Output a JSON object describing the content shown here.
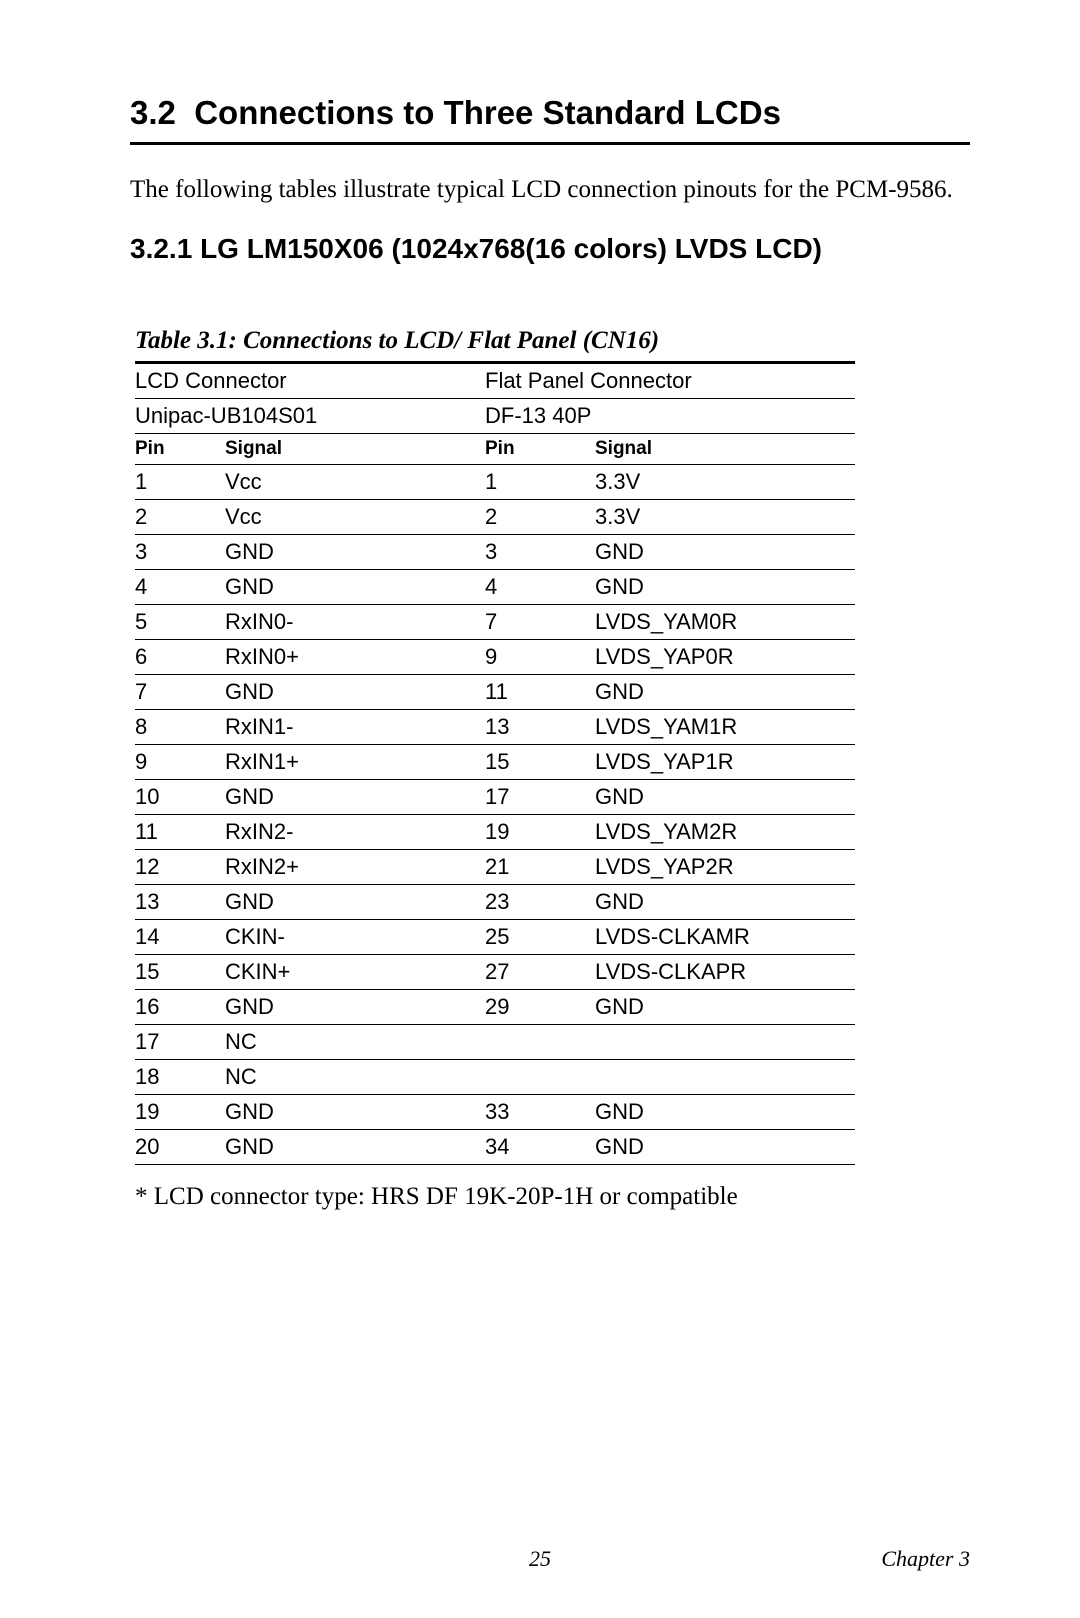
{
  "section": {
    "number": "3.2",
    "title": "Connections to Three Standard LCDs",
    "intro": "The following tables illustrate typical LCD connection pinouts for the PCM-9586."
  },
  "subsection": {
    "number": "3.2.1",
    "title": "LG LM150X06 (1024x768(16 colors) LVDS LCD)"
  },
  "table": {
    "caption": "Table 3.1: Connections to LCD/ Flat Panel  (CN16)",
    "left_group": "LCD Connector",
    "right_group": "Flat Panel Connector",
    "left_sub": "Unipac-UB104S01",
    "right_sub": "DF-13 40P",
    "col_headers": {
      "pin": "Pin",
      "signal": "Signal"
    },
    "rows": [
      {
        "lp": "1",
        "ls": "Vcc",
        "rp": "1",
        "rs": "3.3V"
      },
      {
        "lp": "2",
        "ls": "Vcc",
        "rp": "2",
        "rs": "3.3V"
      },
      {
        "lp": "3",
        "ls": "GND",
        "rp": "3",
        "rs": "GND"
      },
      {
        "lp": "4",
        "ls": "GND",
        "rp": "4",
        "rs": "GND"
      },
      {
        "lp": "5",
        "ls": "RxIN0-",
        "rp": "7",
        "rs": "LVDS_YAM0R"
      },
      {
        "lp": "6",
        "ls": "RxIN0+",
        "rp": "9",
        "rs": "LVDS_YAP0R"
      },
      {
        "lp": "7",
        "ls": "GND",
        "rp": "11",
        "rs": "GND"
      },
      {
        "lp": "8",
        "ls": "RxIN1-",
        "rp": "13",
        "rs": "LVDS_YAM1R"
      },
      {
        "lp": "9",
        "ls": "RxIN1+",
        "rp": "15",
        "rs": "LVDS_YAP1R"
      },
      {
        "lp": "10",
        "ls": "GND",
        "rp": "17",
        "rs": "GND"
      },
      {
        "lp": "11",
        "ls": "RxIN2-",
        "rp": "19",
        "rs": "LVDS_YAM2R"
      },
      {
        "lp": "12",
        "ls": "RxIN2+",
        "rp": "21",
        "rs": "LVDS_YAP2R"
      },
      {
        "lp": "13",
        "ls": "GND",
        "rp": "23",
        "rs": "GND"
      },
      {
        "lp": "14",
        "ls": "CKIN-",
        "rp": "25",
        "rs": "LVDS-CLKAMR"
      },
      {
        "lp": "15",
        "ls": "CKIN+",
        "rp": "27",
        "rs": "LVDS-CLKAPR"
      },
      {
        "lp": "16",
        "ls": "GND",
        "rp": "29",
        "rs": "GND"
      },
      {
        "lp": "17",
        "ls": "NC",
        "rp": "",
        "rs": ""
      },
      {
        "lp": "18",
        "ls": "NC",
        "rp": "",
        "rs": ""
      },
      {
        "lp": "19",
        "ls": "GND",
        "rp": "33",
        "rs": "GND"
      },
      {
        "lp": "20",
        "ls": "GND",
        "rp": "34",
        "rs": "GND"
      }
    ],
    "footnote": "* LCD connector type: HRS DF 19K-20P-1H or compatible"
  },
  "footer": {
    "page": "25",
    "chapter": "Chapter 3"
  },
  "style": {
    "font_body": "Times New Roman",
    "font_headings": "Arial",
    "rule_color": "#000000",
    "background": "#ffffff"
  }
}
